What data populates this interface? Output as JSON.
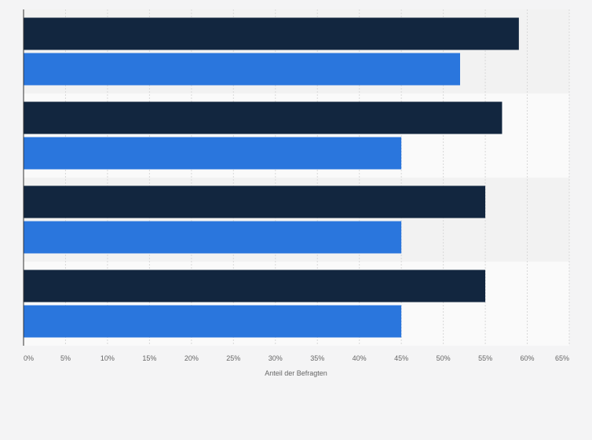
{
  "chart_data": {
    "type": "bar",
    "orientation": "horizontal",
    "title": "",
    "xlabel": "Anteil der Befragten",
    "ylabel": "",
    "xlim": [
      0,
      65
    ],
    "x_ticks": [
      0,
      5,
      10,
      15,
      20,
      25,
      30,
      35,
      40,
      45,
      50,
      55,
      60,
      65
    ],
    "x_tick_labels": [
      "0%",
      "5%",
      "10%",
      "15%",
      "20%",
      "25%",
      "30%",
      "35%",
      "40%",
      "45%",
      "50%",
      "55%",
      "60%",
      "65%"
    ],
    "categories": [
      "",
      "",
      "",
      ""
    ],
    "series": [
      {
        "values": [
          59,
          57,
          55,
          55
        ],
        "color": "#12263f"
      },
      {
        "values": [
          52,
          45,
          45,
          45
        ],
        "color": "#2a76dd"
      }
    ],
    "grid": "vertical",
    "legend": "none",
    "colors": {
      "background": "#f4f4f5",
      "band_light": "#fafafa",
      "band_dark": "#f2f2f2",
      "grid": "#d9d9d9",
      "axis": "#333333",
      "tick_text": "#666666"
    }
  }
}
